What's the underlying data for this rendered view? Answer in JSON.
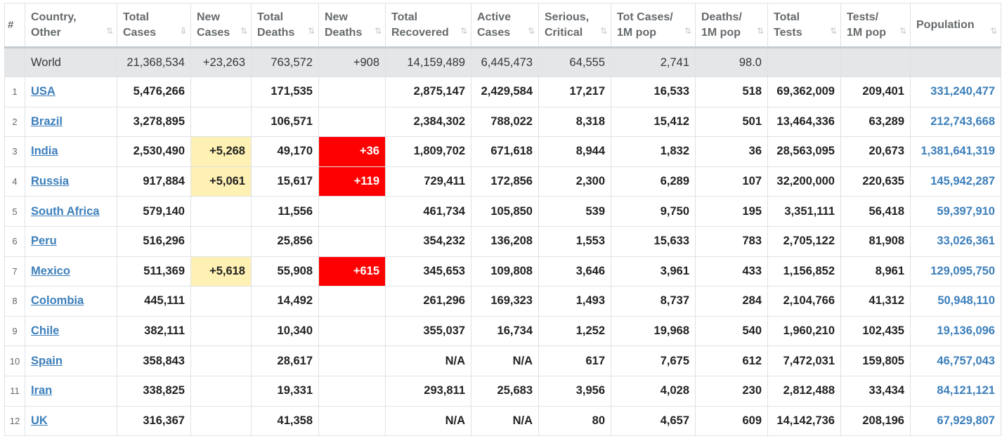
{
  "headers": [
    {
      "label": "#",
      "sort": false
    },
    {
      "label": "Country,\nOther",
      "sort": true
    },
    {
      "label": "Total\nCases",
      "sort": true,
      "active": true
    },
    {
      "label": "New\nCases",
      "sort": true
    },
    {
      "label": "Total\nDeaths",
      "sort": true
    },
    {
      "label": "New\nDeaths",
      "sort": true
    },
    {
      "label": "Total\nRecovered",
      "sort": true
    },
    {
      "label": "Active\nCases",
      "sort": true
    },
    {
      "label": "Serious,\nCritical",
      "sort": true
    },
    {
      "label": "Tot Cases/\n1M pop",
      "sort": true
    },
    {
      "label": "Deaths/\n1M pop",
      "sort": true
    },
    {
      "label": "Total\nTests",
      "sort": true
    },
    {
      "label": "Tests/\n1M pop",
      "sort": true
    },
    {
      "label": "Population",
      "sort": true
    }
  ],
  "sort_icons": {
    "inactive": "⇅",
    "active": "⇩"
  },
  "world": {
    "rank": "",
    "country": "World",
    "total_cases": "21,368,534",
    "new_cases": "+23,263",
    "total_deaths": "763,572",
    "new_deaths": "+908",
    "total_recovered": "14,159,489",
    "active_cases": "6,445,473",
    "serious": "64,555",
    "cases_per_1m": "2,741",
    "deaths_per_1m": "98.0",
    "total_tests": "",
    "tests_per_1m": "",
    "population": ""
  },
  "rows": [
    {
      "rank": "1",
      "country": "USA",
      "total_cases": "5,476,266",
      "new_cases": "",
      "total_deaths": "171,535",
      "new_deaths": "",
      "total_recovered": "2,875,147",
      "active_cases": "2,429,584",
      "serious": "17,217",
      "cases_per_1m": "16,533",
      "deaths_per_1m": "518",
      "total_tests": "69,362,009",
      "tests_per_1m": "209,401",
      "population": "331,240,477"
    },
    {
      "rank": "2",
      "country": "Brazil",
      "total_cases": "3,278,895",
      "new_cases": "",
      "total_deaths": "106,571",
      "new_deaths": "",
      "total_recovered": "2,384,302",
      "active_cases": "788,022",
      "serious": "8,318",
      "cases_per_1m": "15,412",
      "deaths_per_1m": "501",
      "total_tests": "13,464,336",
      "tests_per_1m": "63,289",
      "population": "212,743,668"
    },
    {
      "rank": "3",
      "country": "India",
      "total_cases": "2,530,490",
      "new_cases": "+5,268",
      "total_deaths": "49,170",
      "new_deaths": "+36",
      "total_recovered": "1,809,702",
      "active_cases": "671,618",
      "serious": "8,944",
      "cases_per_1m": "1,832",
      "deaths_per_1m": "36",
      "total_tests": "28,563,095",
      "tests_per_1m": "20,673",
      "population": "1,381,641,319"
    },
    {
      "rank": "4",
      "country": "Russia",
      "total_cases": "917,884",
      "new_cases": "+5,061",
      "total_deaths": "15,617",
      "new_deaths": "+119",
      "total_recovered": "729,411",
      "active_cases": "172,856",
      "serious": "2,300",
      "cases_per_1m": "6,289",
      "deaths_per_1m": "107",
      "total_tests": "32,200,000",
      "tests_per_1m": "220,635",
      "population": "145,942,287"
    },
    {
      "rank": "5",
      "country": "South Africa",
      "total_cases": "579,140",
      "new_cases": "",
      "total_deaths": "11,556",
      "new_deaths": "",
      "total_recovered": "461,734",
      "active_cases": "105,850",
      "serious": "539",
      "cases_per_1m": "9,750",
      "deaths_per_1m": "195",
      "total_tests": "3,351,111",
      "tests_per_1m": "56,418",
      "population": "59,397,910"
    },
    {
      "rank": "6",
      "country": "Peru",
      "total_cases": "516,296",
      "new_cases": "",
      "total_deaths": "25,856",
      "new_deaths": "",
      "total_recovered": "354,232",
      "active_cases": "136,208",
      "serious": "1,553",
      "cases_per_1m": "15,633",
      "deaths_per_1m": "783",
      "total_tests": "2,705,122",
      "tests_per_1m": "81,908",
      "population": "33,026,361"
    },
    {
      "rank": "7",
      "country": "Mexico",
      "total_cases": "511,369",
      "new_cases": "+5,618",
      "total_deaths": "55,908",
      "new_deaths": "+615",
      "total_recovered": "345,653",
      "active_cases": "109,808",
      "serious": "3,646",
      "cases_per_1m": "3,961",
      "deaths_per_1m": "433",
      "total_tests": "1,156,852",
      "tests_per_1m": "8,961",
      "population": "129,095,750"
    },
    {
      "rank": "8",
      "country": "Colombia",
      "total_cases": "445,111",
      "new_cases": "",
      "total_deaths": "14,492",
      "new_deaths": "",
      "total_recovered": "261,296",
      "active_cases": "169,323",
      "serious": "1,493",
      "cases_per_1m": "8,737",
      "deaths_per_1m": "284",
      "total_tests": "2,104,766",
      "tests_per_1m": "41,312",
      "population": "50,948,110"
    },
    {
      "rank": "9",
      "country": "Chile",
      "total_cases": "382,111",
      "new_cases": "",
      "total_deaths": "10,340",
      "new_deaths": "",
      "total_recovered": "355,037",
      "active_cases": "16,734",
      "serious": "1,252",
      "cases_per_1m": "19,968",
      "deaths_per_1m": "540",
      "total_tests": "1,960,210",
      "tests_per_1m": "102,435",
      "population": "19,136,096"
    },
    {
      "rank": "10",
      "country": "Spain",
      "total_cases": "358,843",
      "new_cases": "",
      "total_deaths": "28,617",
      "new_deaths": "",
      "total_recovered": "N/A",
      "active_cases": "N/A",
      "serious": "617",
      "cases_per_1m": "7,675",
      "deaths_per_1m": "612",
      "total_tests": "7,472,031",
      "tests_per_1m": "159,805",
      "population": "46,757,043"
    },
    {
      "rank": "11",
      "country": "Iran",
      "total_cases": "338,825",
      "new_cases": "",
      "total_deaths": "19,331",
      "new_deaths": "",
      "total_recovered": "293,811",
      "active_cases": "25,683",
      "serious": "3,956",
      "cases_per_1m": "4,028",
      "deaths_per_1m": "230",
      "total_tests": "2,812,488",
      "tests_per_1m": "33,434",
      "population": "84,121,121"
    },
    {
      "rank": "12",
      "country": "UK",
      "total_cases": "316,367",
      "new_cases": "",
      "total_deaths": "41,358",
      "new_deaths": "",
      "total_recovered": "N/A",
      "active_cases": "N/A",
      "serious": "80",
      "cases_per_1m": "4,657",
      "deaths_per_1m": "609",
      "total_tests": "14,142,736",
      "tests_per_1m": "208,196",
      "population": "67,929,807"
    }
  ],
  "colors": {
    "new_cases_highlight": "#fff1b3",
    "new_deaths_highlight": "#ff0000",
    "link": "#3c7fbb",
    "world_row": "#e5e6e8"
  }
}
